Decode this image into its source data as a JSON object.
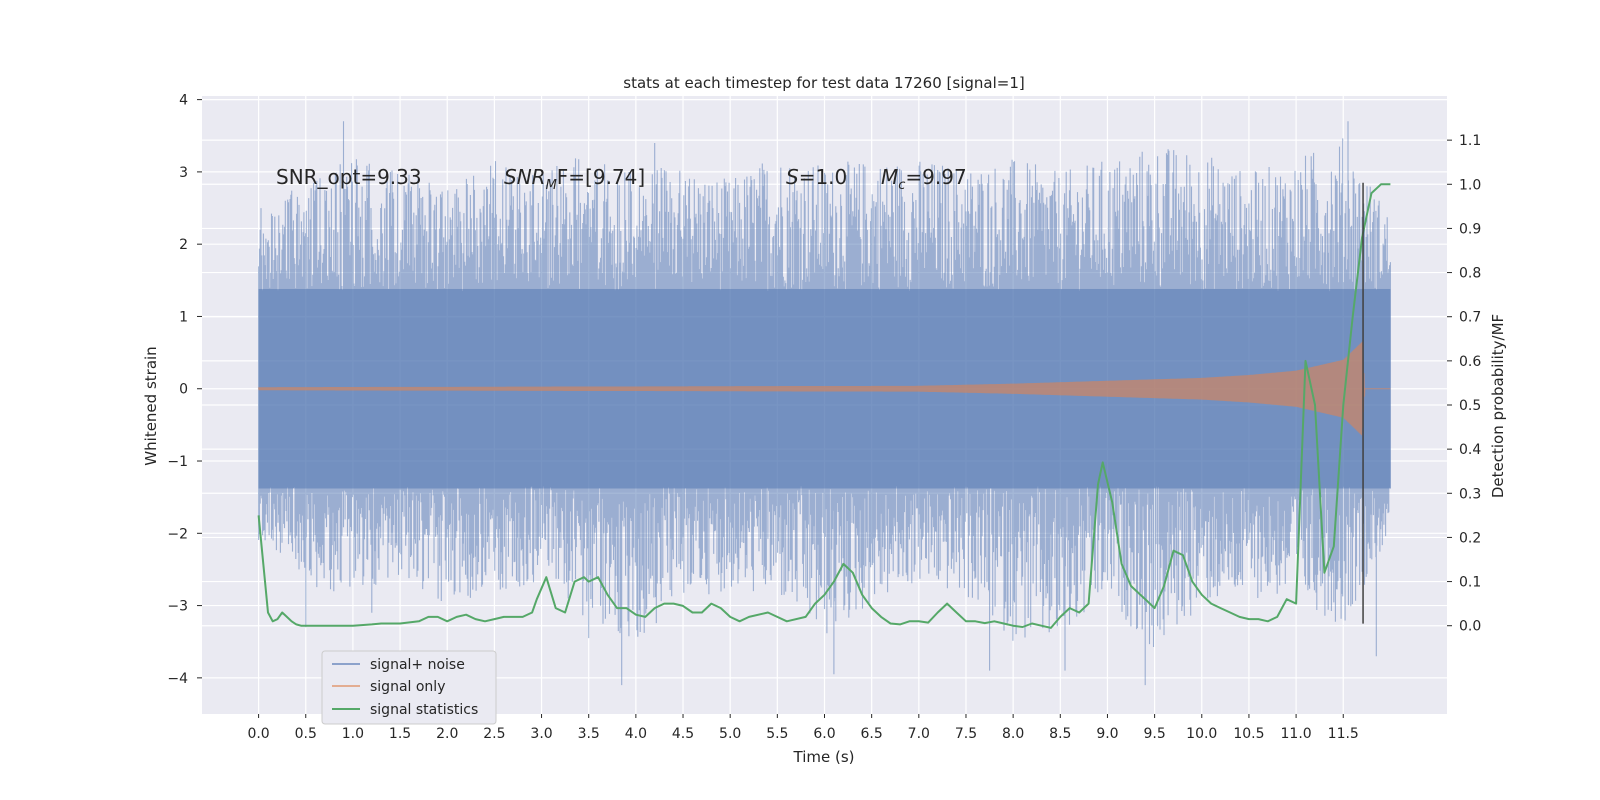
{
  "chart_data": {
    "type": "line",
    "title": "stats at each timestep for test data 17260 [signal=1]",
    "xlabel": "Time (s)",
    "ylabel": "Whitened strain",
    "ylabel_right": "Detection probability/MF",
    "xlim": [
      -0.6,
      12.6
    ],
    "ylim": [
      -4.5,
      4.05
    ],
    "ylim_right": [
      -0.2,
      1.2
    ],
    "x_ticks": [
      0.0,
      0.5,
      1.0,
      1.5,
      2.0,
      2.5,
      3.0,
      3.5,
      4.0,
      4.5,
      5.0,
      5.5,
      6.0,
      6.5,
      7.0,
      7.5,
      8.0,
      8.5,
      9.0,
      9.5,
      10.0,
      10.5,
      11.0,
      11.5
    ],
    "x_tick_labels": [
      "0.0",
      "0.5",
      "1.0",
      "1.5",
      "2.0",
      "2.5",
      "3.0",
      "3.5",
      "4.0",
      "4.5",
      "5.0",
      "5.5",
      "6.0",
      "6.5",
      "7.0",
      "7.5",
      "8.0",
      "8.5",
      "9.0",
      "9.5",
      "10.0",
      "10.5",
      "11.0",
      "11.5"
    ],
    "y_ticks": [
      -4,
      -3,
      -2,
      -1,
      0,
      1,
      2,
      3,
      4
    ],
    "y_tick_labels": [
      "−4",
      "−3",
      "−2",
      "−1",
      "0",
      "1",
      "2",
      "3",
      "4"
    ],
    "y_right_ticks": [
      0.0,
      0.1,
      0.2,
      0.3,
      0.4,
      0.5,
      0.6,
      0.7,
      0.8,
      0.9,
      1.0,
      1.1
    ],
    "y_right_tick_labels": [
      "0.0",
      "0.1",
      "0.2",
      "0.3",
      "0.4",
      "0.5",
      "0.6",
      "0.7",
      "0.8",
      "0.9",
      "1.0",
      "1.1"
    ],
    "grid": true,
    "legend_position": "lower-left",
    "colors": {
      "signal_noise": "#4c72b0",
      "signal_only": "#dd8452",
      "statistics": "#55a868",
      "marker": "#404040",
      "background": "#eaeaf2",
      "grid": "#ffffff"
    },
    "annotations": [
      {
        "label": "SNR_opt=9.33"
      },
      {
        "prefix": "SNR",
        "subscript": "M",
        "suffix": "F=[9.74]"
      },
      {
        "prefix": "S",
        "subscript": "",
        "suffix": "=1.0"
      },
      {
        "prefix": "M",
        "subscript": "c",
        "suffix": "=9.97"
      }
    ],
    "series": [
      {
        "name": "signal+ noise",
        "axis": "left",
        "style": "dense-noise",
        "x_range": [
          0.0,
          12.0
        ],
        "envelope": {
          "x": [
            0.0,
            0.5,
            1.0,
            1.5,
            2.0,
            2.5,
            3.0,
            3.5,
            4.0,
            4.5,
            5.0,
            5.5,
            6.0,
            6.5,
            7.0,
            7.5,
            8.0,
            8.5,
            9.0,
            9.5,
            10.0,
            10.5,
            11.0,
            11.5,
            12.0
          ],
          "upper": [
            2.5,
            2.9,
            3.2,
            3.0,
            2.8,
            3.2,
            3.0,
            3.3,
            3.0,
            3.1,
            2.9,
            3.3,
            3.1,
            3.2,
            3.2,
            3.1,
            3.2,
            3.0,
            3.2,
            3.4,
            3.3,
            3.0,
            3.2,
            3.5,
            2.4
          ],
          "lower": [
            -2.1,
            -2.7,
            -2.9,
            -2.6,
            -3.0,
            -2.8,
            -2.7,
            -3.3,
            -3.6,
            -2.9,
            -2.8,
            -2.9,
            -3.5,
            -3.0,
            -2.7,
            -2.9,
            -3.5,
            -3.6,
            -2.9,
            -3.7,
            -3.0,
            -2.9,
            -2.9,
            -3.3,
            -2.0
          ]
        },
        "outliers": [
          [
            0.5,
            -3.3
          ],
          [
            0.9,
            3.7
          ],
          [
            1.2,
            -3.1
          ],
          [
            3.5,
            -3.45
          ],
          [
            3.85,
            -4.1
          ],
          [
            4.2,
            3.4
          ],
          [
            6.1,
            -3.95
          ],
          [
            7.75,
            -3.9
          ],
          [
            8.55,
            -3.9
          ],
          [
            9.4,
            -4.1
          ],
          [
            11.55,
            3.7
          ],
          [
            11.85,
            -3.7
          ]
        ]
      },
      {
        "name": "signal only",
        "axis": "left",
        "style": "chirp",
        "x_range": [
          0.0,
          12.0
        ],
        "amplitude": {
          "x": [
            0.0,
            7.0,
            8.0,
            9.0,
            10.0,
            10.5,
            11.0,
            11.5,
            11.7,
            11.73,
            12.0
          ],
          "y": [
            0.02,
            0.04,
            0.07,
            0.11,
            0.15,
            0.19,
            0.25,
            0.4,
            0.65,
            0.0,
            0.0
          ]
        }
      },
      {
        "name": "signal statistics",
        "axis": "right",
        "style": "line",
        "x": [
          0.0,
          0.05,
          0.1,
          0.15,
          0.2,
          0.25,
          0.3,
          0.35,
          0.4,
          0.45,
          0.5,
          0.6,
          0.8,
          1.0,
          1.2,
          1.3,
          1.5,
          1.7,
          1.8,
          1.9,
          2.0,
          2.1,
          2.2,
          2.3,
          2.4,
          2.5,
          2.6,
          2.7,
          2.8,
          2.9,
          2.95,
          3.05,
          3.15,
          3.25,
          3.35,
          3.45,
          3.5,
          3.6,
          3.7,
          3.8,
          3.9,
          4.0,
          4.1,
          4.2,
          4.3,
          4.4,
          4.5,
          4.6,
          4.7,
          4.8,
          4.9,
          5.0,
          5.1,
          5.2,
          5.4,
          5.5,
          5.6,
          5.8,
          5.9,
          6.0,
          6.1,
          6.2,
          6.3,
          6.4,
          6.5,
          6.6,
          6.7,
          6.8,
          6.9,
          7.0,
          7.1,
          7.2,
          7.3,
          7.4,
          7.5,
          7.6,
          7.7,
          7.8,
          7.9,
          8.0,
          8.1,
          8.2,
          8.3,
          8.4,
          8.5,
          8.6,
          8.7,
          8.8,
          8.9,
          8.95,
          9.05,
          9.15,
          9.25,
          9.4,
          9.5,
          9.6,
          9.7,
          9.8,
          9.9,
          10.0,
          10.1,
          10.2,
          10.3,
          10.4,
          10.5,
          10.6,
          10.7,
          10.8,
          10.9,
          11.0,
          11.1,
          11.2,
          11.3,
          11.4,
          11.5,
          11.6,
          11.7,
          11.8,
          11.9,
          12.0
        ],
        "y": [
          0.25,
          0.14,
          0.03,
          0.01,
          0.015,
          0.03,
          0.02,
          0.01,
          0.003,
          0.0,
          0.0,
          0.0,
          0.0,
          0.0,
          0.003,
          0.005,
          0.005,
          0.01,
          0.02,
          0.02,
          0.01,
          0.02,
          0.025,
          0.015,
          0.01,
          0.015,
          0.02,
          0.02,
          0.02,
          0.03,
          0.06,
          0.11,
          0.04,
          0.03,
          0.1,
          0.11,
          0.1,
          0.11,
          0.07,
          0.04,
          0.04,
          0.025,
          0.02,
          0.04,
          0.05,
          0.05,
          0.045,
          0.03,
          0.03,
          0.05,
          0.04,
          0.02,
          0.01,
          0.02,
          0.03,
          0.02,
          0.01,
          0.02,
          0.05,
          0.07,
          0.1,
          0.14,
          0.12,
          0.07,
          0.04,
          0.02,
          0.005,
          0.003,
          0.01,
          0.01,
          0.007,
          0.03,
          0.05,
          0.03,
          0.01,
          0.01,
          0.006,
          0.01,
          0.005,
          0.0,
          -0.003,
          0.005,
          0.0,
          -0.005,
          0.02,
          0.04,
          0.03,
          0.05,
          0.32,
          0.37,
          0.28,
          0.14,
          0.09,
          0.06,
          0.04,
          0.09,
          0.17,
          0.16,
          0.1,
          0.07,
          0.05,
          0.04,
          0.03,
          0.02,
          0.015,
          0.015,
          0.01,
          0.02,
          0.06,
          0.05,
          0.6,
          0.5,
          0.12,
          0.18,
          0.5,
          0.7,
          0.88,
          0.98,
          1.0,
          1.0
        ]
      }
    ],
    "vertical_marker": {
      "x": 11.71,
      "y_from": -3.25,
      "y_to": 2.85
    }
  }
}
